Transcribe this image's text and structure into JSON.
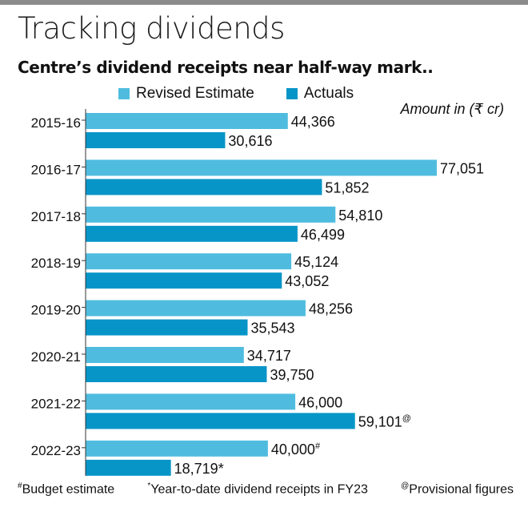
{
  "header": {
    "title": "Tracking dividends",
    "subtitle": "Centre’s dividend receipts near half-way mark.."
  },
  "legend": {
    "items": [
      {
        "label": "Revised Estimate",
        "color": "#4fbcdf"
      },
      {
        "label": "Actuals",
        "color": "#0795c8"
      }
    ]
  },
  "unit_label": "Amount in (₹ cr)",
  "chart_data": {
    "type": "bar",
    "orientation": "horizontal",
    "categories": [
      "2015-16",
      "2016-17",
      "2017-18",
      "2018-19",
      "2019-20",
      "2020-21",
      "2021-22",
      "2022-23"
    ],
    "series": [
      {
        "name": "Revised Estimate",
        "values": [
          44366,
          77051,
          54810,
          45124,
          48256,
          34717,
          46000,
          40000
        ],
        "color": "#4fbcdf"
      },
      {
        "name": "Actuals",
        "values": [
          30616,
          51852,
          46499,
          43052,
          35543,
          39750,
          59101,
          18719
        ],
        "color": "#0795c8"
      }
    ],
    "value_labels": [
      [
        "44,366",
        "77,051",
        "54,810",
        "45,124",
        "48,256",
        "34,717",
        "46,000",
        "40,000"
      ],
      [
        "30,616",
        "51,852",
        "46,499",
        "43,052",
        "35,543",
        "39,750",
        "59,101",
        "18,719"
      ]
    ],
    "label_marks": [
      [
        "",
        "",
        "",
        "",
        "",
        "",
        "",
        "#"
      ],
      [
        "",
        "",
        "",
        "",
        "",
        "",
        "@",
        "*"
      ]
    ],
    "xlim": [
      0,
      80000
    ],
    "grid": false,
    "legend_position": "top"
  },
  "footnotes": [
    {
      "mark": "#",
      "text": "Budget estimate"
    },
    {
      "mark": "*",
      "text": "Year-to-date dividend receipts in FY23"
    },
    {
      "mark": "@",
      "text": "Provisional figures"
    }
  ]
}
